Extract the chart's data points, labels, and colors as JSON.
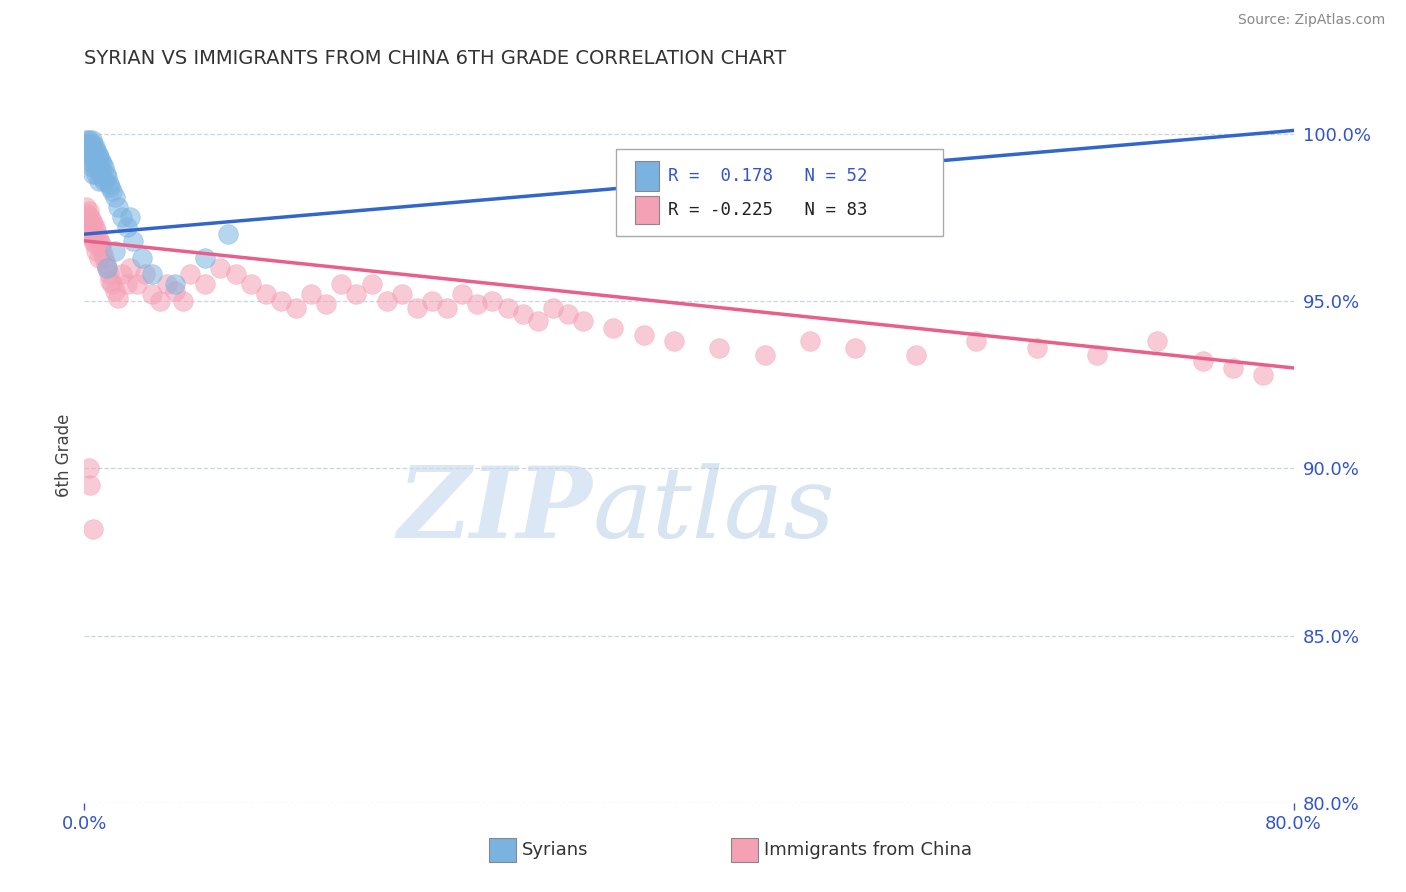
{
  "title": "SYRIAN VS IMMIGRANTS FROM CHINA 6TH GRADE CORRELATION CHART",
  "source": "Source: ZipAtlas.com",
  "ylabel": "6th Grade",
  "x_min": 0.0,
  "x_max": 0.8,
  "y_min": 0.8,
  "y_max": 1.008,
  "y_ticks": [
    0.8,
    0.85,
    0.9,
    0.95,
    1.0
  ],
  "y_tick_labels": [
    "80.0%",
    "85.0%",
    "90.0%",
    "95.0%",
    "100.0%"
  ],
  "blue_color": "#7ab3e0",
  "pink_color": "#f4a0b5",
  "blue_line_color": "#3366cc",
  "pink_line_color": "#e8608a",
  "r_blue": 0.178,
  "n_blue": 52,
  "r_pink": -0.225,
  "n_pink": 83,
  "watermark_zip": "ZIP",
  "watermark_atlas": "atlas",
  "blue_line_x0": 0.0,
  "blue_line_y0": 0.97,
  "blue_line_x1": 0.8,
  "blue_line_y1": 1.001,
  "pink_line_x0": 0.0,
  "pink_line_y0": 0.968,
  "pink_line_x1": 0.8,
  "pink_line_y1": 0.93,
  "blue_scatter_x": [
    0.001,
    0.002,
    0.002,
    0.003,
    0.003,
    0.003,
    0.004,
    0.004,
    0.004,
    0.005,
    0.005,
    0.005,
    0.005,
    0.006,
    0.006,
    0.006,
    0.006,
    0.007,
    0.007,
    0.007,
    0.008,
    0.008,
    0.008,
    0.009,
    0.009,
    0.01,
    0.01,
    0.01,
    0.011,
    0.011,
    0.012,
    0.012,
    0.013,
    0.013,
    0.014,
    0.015,
    0.016,
    0.017,
    0.018,
    0.02,
    0.022,
    0.025,
    0.028,
    0.032,
    0.038,
    0.045,
    0.06,
    0.08,
    0.095,
    0.03,
    0.015,
    0.02
  ],
  "blue_scatter_y": [
    0.998,
    0.997,
    0.996,
    0.998,
    0.995,
    0.993,
    0.997,
    0.995,
    0.992,
    0.998,
    0.996,
    0.994,
    0.99,
    0.997,
    0.995,
    0.993,
    0.988,
    0.996,
    0.994,
    0.99,
    0.995,
    0.992,
    0.988,
    0.994,
    0.991,
    0.993,
    0.99,
    0.986,
    0.992,
    0.989,
    0.991,
    0.987,
    0.99,
    0.986,
    0.988,
    0.987,
    0.985,
    0.984,
    0.983,
    0.981,
    0.978,
    0.975,
    0.972,
    0.968,
    0.963,
    0.958,
    0.955,
    0.963,
    0.97,
    0.975,
    0.96,
    0.965
  ],
  "pink_scatter_x": [
    0.001,
    0.002,
    0.002,
    0.003,
    0.003,
    0.004,
    0.004,
    0.005,
    0.005,
    0.006,
    0.006,
    0.007,
    0.007,
    0.008,
    0.008,
    0.009,
    0.01,
    0.01,
    0.011,
    0.012,
    0.013,
    0.014,
    0.015,
    0.016,
    0.017,
    0.018,
    0.02,
    0.022,
    0.025,
    0.028,
    0.03,
    0.035,
    0.04,
    0.045,
    0.05,
    0.055,
    0.06,
    0.065,
    0.07,
    0.08,
    0.09,
    0.1,
    0.11,
    0.12,
    0.13,
    0.14,
    0.15,
    0.16,
    0.17,
    0.18,
    0.19,
    0.2,
    0.21,
    0.22,
    0.23,
    0.24,
    0.25,
    0.26,
    0.27,
    0.28,
    0.29,
    0.3,
    0.31,
    0.32,
    0.33,
    0.35,
    0.37,
    0.39,
    0.42,
    0.45,
    0.48,
    0.51,
    0.55,
    0.59,
    0.63,
    0.67,
    0.71,
    0.74,
    0.76,
    0.78,
    0.003,
    0.004,
    0.006
  ],
  "pink_scatter_y": [
    0.978,
    0.976,
    0.974,
    0.977,
    0.972,
    0.975,
    0.971,
    0.974,
    0.969,
    0.973,
    0.968,
    0.972,
    0.967,
    0.971,
    0.965,
    0.969,
    0.968,
    0.963,
    0.967,
    0.965,
    0.963,
    0.961,
    0.96,
    0.958,
    0.956,
    0.955,
    0.953,
    0.951,
    0.958,
    0.955,
    0.96,
    0.955,
    0.958,
    0.952,
    0.95,
    0.955,
    0.953,
    0.95,
    0.958,
    0.955,
    0.96,
    0.958,
    0.955,
    0.952,
    0.95,
    0.948,
    0.952,
    0.949,
    0.955,
    0.952,
    0.955,
    0.95,
    0.952,
    0.948,
    0.95,
    0.948,
    0.952,
    0.949,
    0.95,
    0.948,
    0.946,
    0.944,
    0.948,
    0.946,
    0.944,
    0.942,
    0.94,
    0.938,
    0.936,
    0.934,
    0.938,
    0.936,
    0.934,
    0.938,
    0.936,
    0.934,
    0.938,
    0.932,
    0.93,
    0.928,
    0.9,
    0.895,
    0.882
  ]
}
